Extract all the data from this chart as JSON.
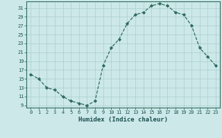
{
  "x": [
    0,
    1,
    2,
    3,
    4,
    5,
    6,
    7,
    8,
    9,
    10,
    11,
    12,
    13,
    14,
    15,
    16,
    17,
    18,
    19,
    20,
    21,
    22,
    23
  ],
  "y": [
    16,
    15,
    13,
    12.5,
    11,
    10,
    9.5,
    9,
    10,
    18,
    22,
    24,
    27.5,
    29.5,
    30,
    31.5,
    32,
    31.5,
    30,
    29.5,
    27,
    22,
    20,
    18
  ],
  "line_color": "#2e6b5e",
  "marker": "D",
  "marker_size": 2.2,
  "bg_color": "#cce8e8",
  "grid_color": "#aacece",
  "xlabel": "Humidex (Indice chaleur)",
  "xlim": [
    -0.5,
    23.5
  ],
  "ylim": [
    8.5,
    32.5
  ],
  "yticks": [
    9,
    11,
    13,
    15,
    17,
    19,
    21,
    23,
    25,
    27,
    29,
    31
  ],
  "xticks": [
    0,
    1,
    2,
    3,
    4,
    5,
    6,
    7,
    8,
    9,
    10,
    11,
    12,
    13,
    14,
    15,
    16,
    17,
    18,
    19,
    20,
    21,
    22,
    23
  ],
  "tick_fontsize": 5.0,
  "xlabel_fontsize": 6.5,
  "label_color": "#1a5050",
  "spine_color": "#2e6b5e",
  "linewidth": 0.9
}
